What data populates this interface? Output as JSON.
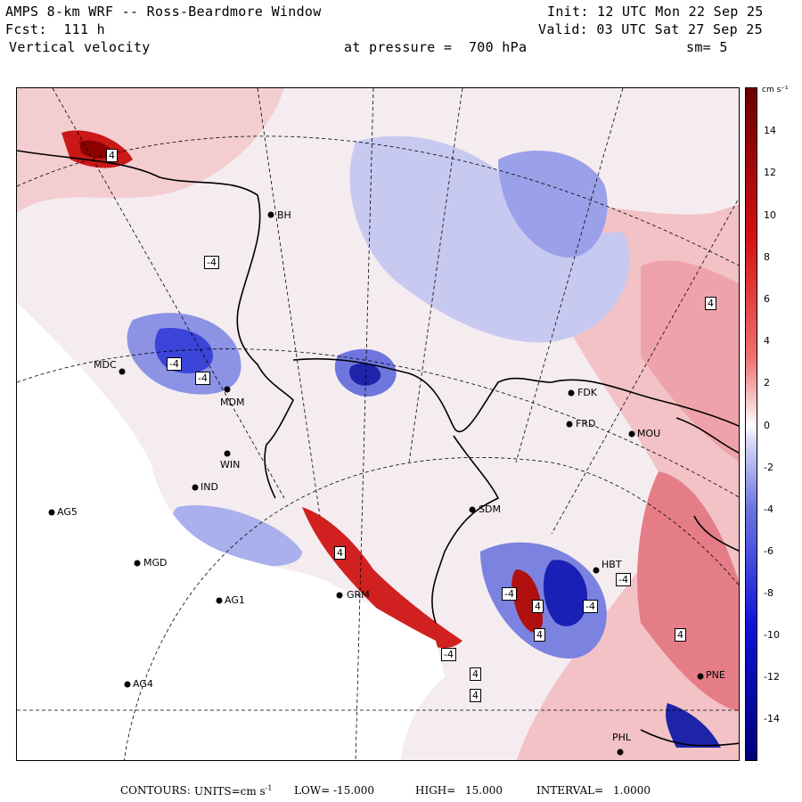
{
  "header": {
    "model": "AMPS 8-km WRF -- Ross-Beardmore Window",
    "forecast": "Fcst:  111 h",
    "field": "Vertical velocity",
    "init": "Init: 12 UTC Mon 22 Sep 25",
    "valid": "Valid: 03 UTC Sat 27 Sep 25",
    "level": "at pressure =  700 hPa",
    "smoothing": "sm= 5"
  },
  "stations": [
    {
      "id": "MDC"
    },
    {
      "id": "MDM"
    },
    {
      "id": "WIN"
    },
    {
      "id": "IND"
    },
    {
      "id": "AG5"
    },
    {
      "id": "MGD"
    },
    {
      "id": "AG1"
    },
    {
      "id": "AG4"
    },
    {
      "id": "GRM"
    },
    {
      "id": "SDM"
    },
    {
      "id": "FDK"
    },
    {
      "id": "FRD"
    },
    {
      "id": "MOU"
    },
    {
      "id": "PHL"
    },
    {
      "id": "PNE"
    },
    {
      "id": "HBT"
    },
    {
      "id": "BH"
    }
  ],
  "contour_labels": [
    "-4",
    "-4",
    "4",
    "-4",
    "-4",
    "4",
    "-4",
    "4",
    "4",
    "-4",
    "4",
    "4",
    "4",
    "4",
    "-4"
  ],
  "colorbar": {
    "unit": "cm s⁻¹",
    "ticks": [
      "14",
      "12",
      "10",
      "8",
      "6",
      "4",
      "2",
      "0",
      "-2",
      "-4",
      "-6",
      "-8",
      "-10",
      "-12",
      "-14"
    ]
  },
  "footer": {
    "contours_label": "CONTOURS:",
    "units_label": "UNITS=cm s",
    "units_exp": "-1",
    "low_label": "LOW=",
    "low_value": "-15.000",
    "high_label": "HIGH=",
    "high_value": "15.000",
    "interval_label": "INTERVAL=",
    "interval_value": "1.0000"
  },
  "colors": {
    "strong_red": "#8b0000",
    "red": "#e02020",
    "pink": "#f4c4c4",
    "neutral": "#f6eef2",
    "light_blue": "#c8cbf4",
    "blue": "#3a44d8",
    "strong_blue": "#00008b"
  }
}
